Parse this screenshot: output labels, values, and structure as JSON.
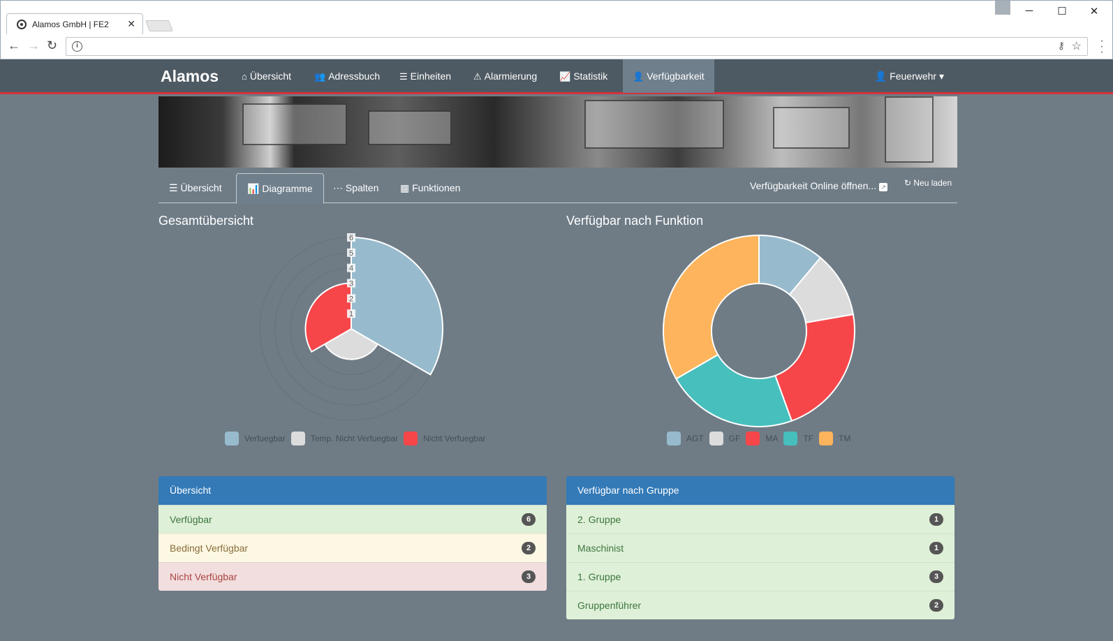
{
  "browser": {
    "tab_title": "Alamos GmbH | FE2",
    "close_glyph": "✕",
    "window_controls": {
      "minimize": "─",
      "maximize": "☐",
      "close": "✕"
    }
  },
  "navbar": {
    "brand": "Alamos",
    "items": [
      {
        "label": "Übersicht",
        "icon": "home-icon",
        "glyph": "⌂"
      },
      {
        "label": "Adressbuch",
        "icon": "users-icon",
        "glyph": "👥"
      },
      {
        "label": "Einheiten",
        "icon": "list-icon",
        "glyph": "☰"
      },
      {
        "label": "Alarmierung",
        "icon": "warning-icon",
        "glyph": "⚠"
      },
      {
        "label": "Statistik",
        "icon": "chart-line-icon",
        "glyph": "📈"
      },
      {
        "label": "Verfügbarkeit",
        "icon": "user-icon",
        "glyph": "👤",
        "active": true
      }
    ],
    "user": {
      "label": "Feuerwehr",
      "glyph": "👤",
      "caret": "▾"
    }
  },
  "subtabs": {
    "items": [
      {
        "label": "Übersicht",
        "glyph": "☰"
      },
      {
        "label": "Diagramme",
        "glyph": "📊",
        "active": true
      },
      {
        "label": "Spalten",
        "glyph": "⋯"
      },
      {
        "label": "Funktionen",
        "glyph": "▦"
      }
    ],
    "open_online": "Verfügbarkeit Online öffnen...",
    "reload": "Neu laden",
    "reload_glyph": "↻"
  },
  "sections": {
    "left_title": "Gesamtübersicht",
    "right_title": "Verfügbar nach Funktion"
  },
  "chart_data": [
    {
      "type": "polarArea",
      "categories": [
        "Verfuegbar",
        "Temp. Nicht Verfuegbar",
        "Nicht Verfuegbar"
      ],
      "values": [
        6,
        2,
        3
      ],
      "colors": [
        "#97bbcd",
        "#dcdcdc",
        "#f7464a"
      ],
      "r_ticks": [
        "1",
        "2",
        "3",
        "4",
        "5",
        "6"
      ],
      "rlim": [
        0,
        6
      ],
      "legend": "bottom"
    },
    {
      "type": "doughnut",
      "categories": [
        "AGT",
        "GF",
        "MA",
        "TF",
        "TM"
      ],
      "values": [
        1,
        1,
        2,
        2,
        3
      ],
      "colors": [
        "#97bbcd",
        "#dcdcdc",
        "#f7464a",
        "#46bfbd",
        "#fdb45c"
      ],
      "legend": "bottom"
    }
  ],
  "panels": {
    "overview": {
      "title": "Übersicht",
      "rows": [
        {
          "label": "Verfügbar",
          "count": "6",
          "style": "green"
        },
        {
          "label": "Bedingt Verfügbar",
          "count": "2",
          "style": "yellow"
        },
        {
          "label": "Nicht Verfügbar",
          "count": "3",
          "style": "red"
        }
      ]
    },
    "groups": {
      "title": "Verfügbar nach Gruppe",
      "rows": [
        {
          "label": "2. Gruppe",
          "count": "1"
        },
        {
          "label": "Maschinist",
          "count": "1"
        },
        {
          "label": "1. Gruppe",
          "count": "3"
        },
        {
          "label": "Gruppenführer",
          "count": "2"
        }
      ]
    }
  }
}
